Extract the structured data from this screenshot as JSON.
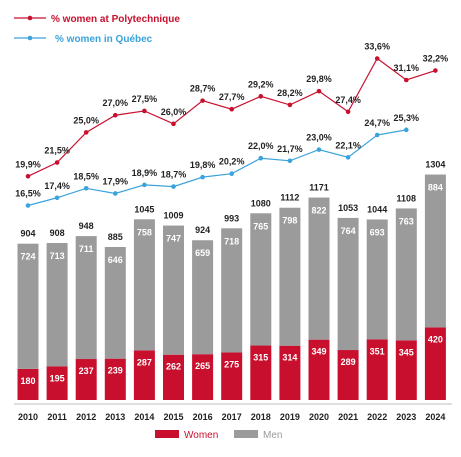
{
  "chart_data": {
    "type": "bar",
    "categories": [
      "2010",
      "2011",
      "2012",
      "2013",
      "2014",
      "2015",
      "2016",
      "2017",
      "2018",
      "2019",
      "2020",
      "2021",
      "2022",
      "2023",
      "2024"
    ],
    "series": [
      {
        "name": "Women",
        "color": "#c8102e",
        "values": [
          180,
          195,
          237,
          239,
          287,
          262,
          265,
          275,
          315,
          314,
          349,
          289,
          351,
          345,
          420
        ]
      },
      {
        "name": "Men",
        "color": "#9b9b9b",
        "values": [
          724,
          713,
          711,
          646,
          758,
          747,
          659,
          718,
          765,
          798,
          822,
          764,
          693,
          763,
          884
        ]
      }
    ],
    "totals": [
      904,
      908,
      948,
      885,
      1045,
      1009,
      924,
      993,
      1080,
      1112,
      1171,
      1053,
      1044,
      1108,
      1304
    ],
    "lines": [
      {
        "name": "% women at Polytechnique",
        "color": "#c8102e",
        "values": [
          19.9,
          21.5,
          25.0,
          27.0,
          27.5,
          26.0,
          28.7,
          27.7,
          29.2,
          28.2,
          29.8,
          27.4,
          33.6,
          31.1,
          32.2
        ],
        "labels": [
          "19,9%",
          "21,5%",
          "25,0%",
          "27,0%",
          "27,5%",
          "26,0%",
          "28,7%",
          "27,7%",
          "29,2%",
          "28,2%",
          "29,8%",
          "27,4%",
          "33,6%",
          "31,1%",
          "32,2%"
        ]
      },
      {
        "name": "% women in Québec",
        "color": "#3aa3dc",
        "values": [
          16.5,
          17.4,
          18.5,
          17.9,
          18.9,
          18.7,
          19.8,
          20.2,
          22.0,
          21.7,
          23.0,
          22.1,
          24.7,
          25.3,
          null
        ],
        "labels": [
          "16,5%",
          "17,4%",
          "18,5%",
          "17,9%",
          "18,9%",
          "18,7%",
          "19,8%",
          "20,2%",
          "22,0%",
          "21,7%",
          "23,0%",
          "22,1%",
          "24,7%",
          "25,3%",
          ""
        ]
      }
    ],
    "legend": {
      "bottom": [
        "Women",
        "Men"
      ],
      "top": [
        "% women at Polytechnique",
        "% women in Québec"
      ]
    },
    "label_colors": {
      "total": "#222222",
      "men": "#ffffff",
      "women": "#ffffff",
      "women_legend": "#c8102e",
      "men_legend": "#9b9b9b"
    },
    "ylim_bars": [
      0,
      1304
    ],
    "ylim_lines": [
      16.5,
      33.6
    ]
  }
}
